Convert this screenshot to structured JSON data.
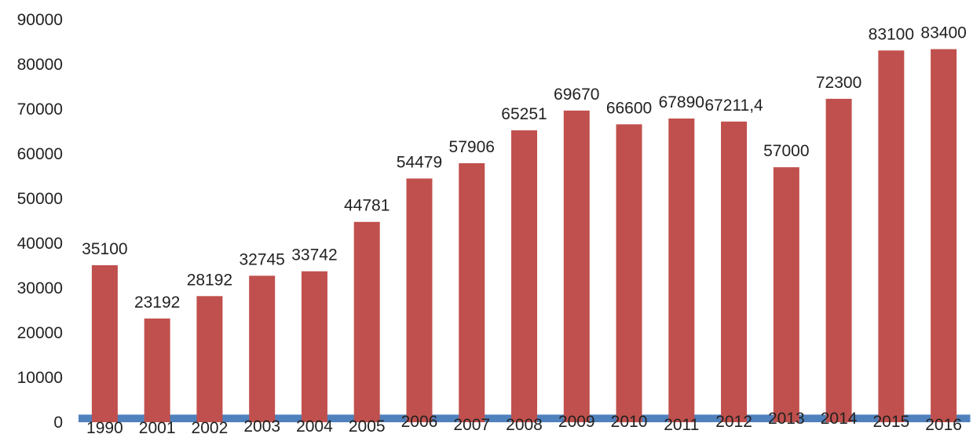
{
  "chart_data": {
    "type": "bar",
    "title": "",
    "xlabel": "",
    "ylabel": "",
    "ylim": [
      0,
      90000
    ],
    "yticks": [
      "0",
      "10000",
      "20000",
      "30000",
      "40000",
      "50000",
      "60000",
      "70000",
      "80000",
      "90000"
    ],
    "grid": false,
    "legend": "none",
    "categories": [
      "1990",
      "2001",
      "2002",
      "2003",
      "2004",
      "2005",
      "2006",
      "2007",
      "2008",
      "2009",
      "2010",
      "2011",
      "2012",
      "2013",
      "2014",
      "2015",
      "2016"
    ],
    "series": [
      {
        "color": "#4f81bd",
        "values": [
          1700,
          1700,
          1700,
          1700,
          1700,
          1700,
          1700,
          1700,
          1700,
          1700,
          1700,
          1700,
          1700,
          1700,
          1700,
          1700,
          1700
        ]
      },
      {
        "color": "#c0504d",
        "values": [
          35100,
          23192,
          28192,
          32745,
          33742,
          44781,
          54479,
          57906,
          65251,
          69670,
          66600,
          67890,
          67211.4,
          57000,
          72300,
          83100,
          83400
        ],
        "labels": [
          "35100",
          "23192",
          "28192",
          "32745",
          "33742",
          "44781",
          "54479",
          "57906",
          "65251",
          "69670",
          "66600",
          "67890",
          "67211,4",
          "57000",
          "72300",
          "83100",
          "83400"
        ]
      }
    ]
  }
}
